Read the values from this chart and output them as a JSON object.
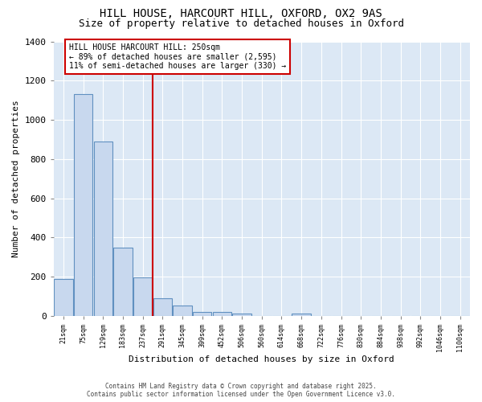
{
  "title1": "HILL HOUSE, HARCOURT HILL, OXFORD, OX2 9AS",
  "title2": "Size of property relative to detached houses in Oxford",
  "xlabel": "Distribution of detached houses by size in Oxford",
  "ylabel": "Number of detached properties",
  "categories": [
    "21sqm",
    "75sqm",
    "129sqm",
    "183sqm",
    "237sqm",
    "291sqm",
    "345sqm",
    "399sqm",
    "452sqm",
    "506sqm",
    "560sqm",
    "614sqm",
    "668sqm",
    "722sqm",
    "776sqm",
    "830sqm",
    "884sqm",
    "938sqm",
    "992sqm",
    "1046sqm",
    "1100sqm"
  ],
  "values": [
    190,
    1130,
    890,
    350,
    195,
    90,
    55,
    20,
    20,
    12,
    0,
    0,
    12,
    0,
    0,
    0,
    0,
    0,
    0,
    0,
    0
  ],
  "bar_color": "#c8d8ee",
  "bar_edge_color": "#6090c0",
  "vline_x": 4.5,
  "vline_color": "#cc0000",
  "annotation_title": "HILL HOUSE HARCOURT HILL: 250sqm",
  "annotation_line1": "← 89% of detached houses are smaller (2,595)",
  "annotation_line2": "11% of semi-detached houses are larger (330) →",
  "annotation_box_color": "#cc0000",
  "annotation_fill": "white",
  "ylim": [
    0,
    1400
  ],
  "yticks": [
    0,
    200,
    400,
    600,
    800,
    1000,
    1200,
    1400
  ],
  "bg_color": "#dce8f5",
  "copyright_line1": "Contains HM Land Registry data © Crown copyright and database right 2025.",
  "copyright_line2": "Contains public sector information licensed under the Open Government Licence v3.0."
}
